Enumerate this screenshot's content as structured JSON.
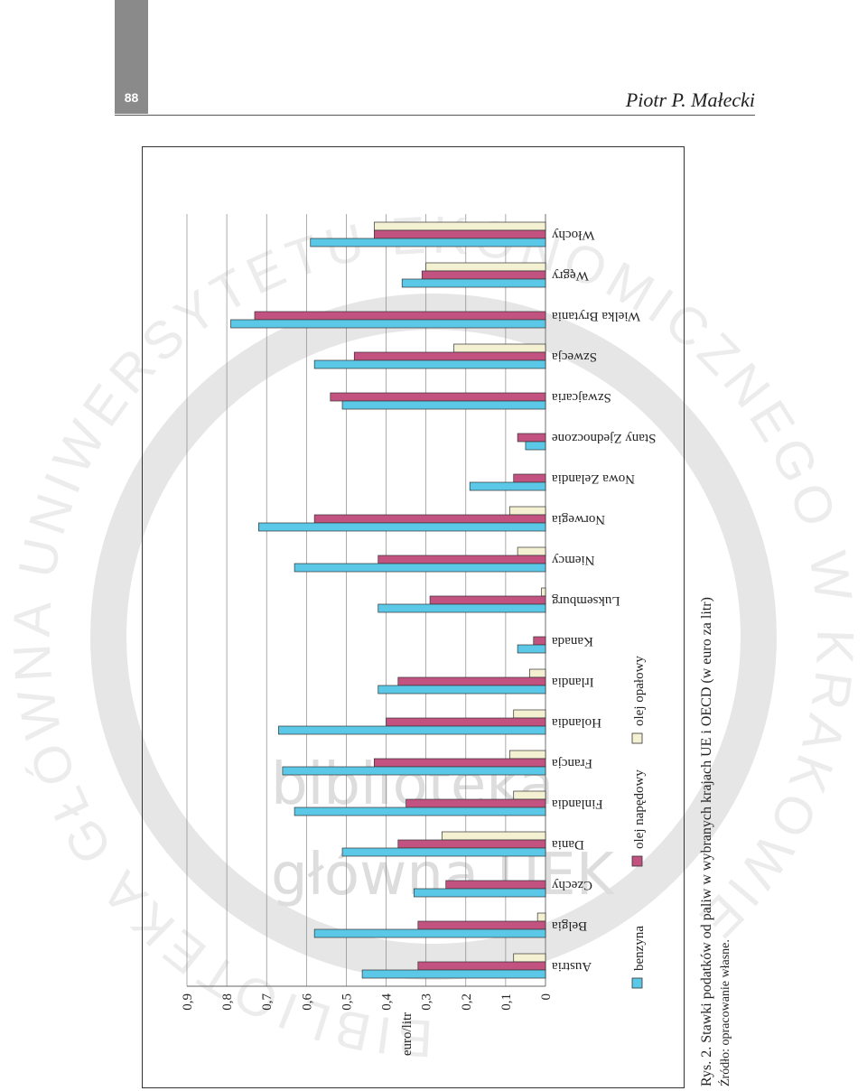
{
  "header": {
    "page_number": "88",
    "author": "Piotr P. Małecki"
  },
  "caption": {
    "title": "Rys. 2. Stawki podatków od paliw w wybranych krajach UE i OECD (w euro za litr)",
    "source": "Źródło: opracowanie własne."
  },
  "watermark": {
    "ring_text": "BIBLIOTEKA GŁÓWNA UNIWERSYTETU EKONOMICZNEGO W KRAKOWIE",
    "word1": "biblioteka",
    "word2": "główna UEK"
  },
  "colors": {
    "benzyna": "#5bc8e8",
    "olej_napedowy": "#c2527f",
    "olej_opalowy": "#f4f0d2",
    "grid": "#888888"
  },
  "chart_data": {
    "type": "bar",
    "orientation": "rotated 90 degrees (categories along vertical axis)",
    "ylabel": "euro/litr",
    "ylim": [
      0,
      0.9
    ],
    "yticks": [
      "0",
      "0,1",
      "0,2",
      "0,3",
      "0,4",
      "0,5",
      "0,6",
      "0,7",
      "0,8",
      "0,9"
    ],
    "grid": true,
    "legend_position": "bottom",
    "categories": [
      "Austria",
      "Belgia",
      "Czechy",
      "Dania",
      "Finlandia",
      "Francja",
      "Holandia",
      "Irlandia",
      "Kanada",
      "Luksemburg",
      "Niemcy",
      "Norwegia",
      "Nowa Zelandia",
      "Stany Zjednoczone",
      "Szwajcaria",
      "Szwecja",
      "Wielka Brytania",
      "Węgry",
      "Włochy"
    ],
    "series": [
      {
        "name": "benzyna",
        "color": "#5bc8e8",
        "values": [
          0.46,
          0.58,
          0.33,
          0.51,
          0.63,
          0.66,
          0.67,
          0.42,
          0.07,
          0.42,
          0.63,
          0.72,
          0.19,
          0.05,
          0.51,
          0.58,
          0.79,
          0.36,
          0.59
        ]
      },
      {
        "name": "olej napędowy",
        "color": "#c2527f",
        "values": [
          0.32,
          0.32,
          0.25,
          0.37,
          0.35,
          0.43,
          0.4,
          0.37,
          0.03,
          0.29,
          0.42,
          0.58,
          0.08,
          0.07,
          0.54,
          0.48,
          0.73,
          0.31,
          0.43
        ]
      },
      {
        "name": "olej opałowy",
        "color": "#f4f0d2",
        "values": [
          0.08,
          0.02,
          0.0,
          0.26,
          0.08,
          0.09,
          0.08,
          0.04,
          0.0,
          0.01,
          0.07,
          0.09,
          0.0,
          0.0,
          0.0,
          0.23,
          0.0,
          0.3,
          0.43
        ]
      }
    ]
  }
}
